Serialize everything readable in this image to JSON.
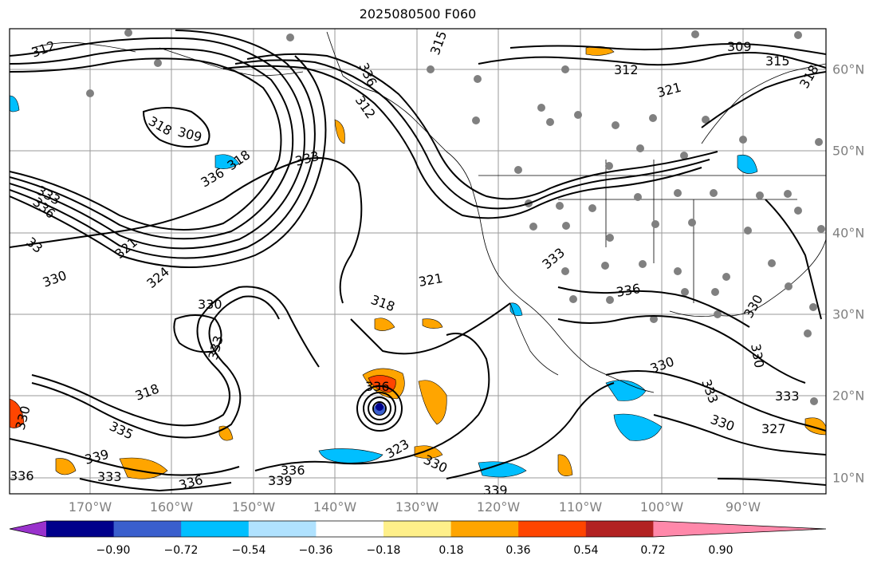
{
  "title": "2025080500 F060",
  "map": {
    "longitude_labels": [
      "170°W",
      "160°W",
      "150°W",
      "140°W",
      "130°W",
      "120°W",
      "110°W",
      "100°W",
      "90°W"
    ],
    "latitude_labels": [
      "60°N",
      "50°N",
      "40°N",
      "30°N",
      "20°N",
      "10°N"
    ],
    "contour_labels": [
      "312",
      "309",
      "315",
      "312",
      "321",
      "318",
      "315",
      "336",
      "333",
      "312",
      "309",
      "318",
      "318",
      "333",
      "336",
      "336",
      "33",
      "324",
      "330",
      "330",
      "321",
      "318",
      "321",
      "333",
      "336",
      "330",
      "330",
      "333",
      "318",
      "336",
      "335",
      "339",
      "323",
      "333",
      "330",
      "336",
      "339",
      "339",
      "336",
      "336",
      "330",
      "333",
      "330",
      "327",
      "333",
      "330"
    ]
  },
  "colorbar": {
    "tick_labels": [
      "−0.90",
      "−0.72",
      "−0.54",
      "−0.36",
      "−0.18",
      "0.18",
      "0.36",
      "0.54",
      "0.72",
      "0.90"
    ],
    "colors": [
      "#9932cc",
      "#00008b",
      "#3a5fcd",
      "#00bfff",
      "#b0e2ff",
      "#ffffff",
      "#fff08a",
      "#ffa500",
      "#ff4500",
      "#b22222",
      "#ff88aa"
    ]
  }
}
